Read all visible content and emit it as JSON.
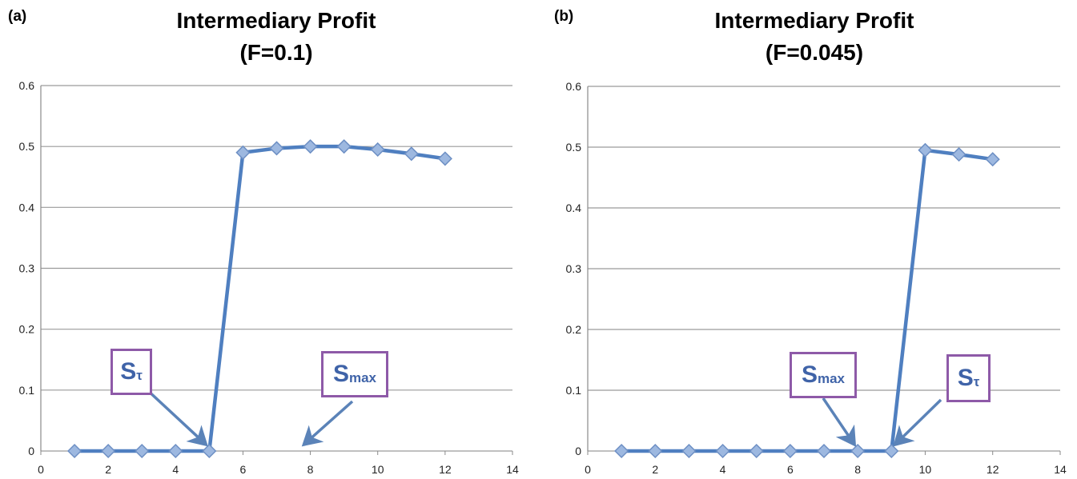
{
  "chart_data": [
    {
      "type": "line",
      "panel_label": "(a)",
      "title": [
        "Intermediary Profit",
        "(F=0.1)"
      ],
      "xlim": [
        0,
        14
      ],
      "ylim": [
        0,
        0.6
      ],
      "x_ticks": [
        0,
        2,
        4,
        6,
        8,
        10,
        12,
        14
      ],
      "y_ticks": [
        0,
        0.1,
        0.2,
        0.3,
        0.4,
        0.5,
        0.6
      ],
      "grid": "horizontal",
      "series": [
        {
          "color": "#4f7fc0",
          "x": [
            1,
            2,
            3,
            4,
            5,
            6,
            7,
            8,
            9,
            10,
            11,
            12
          ],
          "y": [
            0,
            0,
            0,
            0,
            0,
            0.49,
            0.497,
            0.5,
            0.5,
            0.495,
            0.488,
            0.48
          ]
        }
      ],
      "annotations": [
        {
          "main": "S",
          "sub": "τ",
          "arrow_to": {
            "x": 5,
            "y": 0
          }
        },
        {
          "main": "S",
          "sub": "max",
          "arrow_to": {
            "x": 7.9,
            "y": 0
          }
        }
      ]
    },
    {
      "type": "line",
      "panel_label": "(b)",
      "title": [
        "Intermediary Profit",
        "(F=0.045)"
      ],
      "xlim": [
        0,
        14
      ],
      "ylim": [
        0,
        0.6
      ],
      "x_ticks": [
        0,
        2,
        4,
        6,
        8,
        10,
        12,
        14
      ],
      "y_ticks": [
        0,
        0.1,
        0.2,
        0.3,
        0.4,
        0.5,
        0.6
      ],
      "grid": "horizontal",
      "series": [
        {
          "color": "#4f7fc0",
          "x": [
            1,
            2,
            3,
            4,
            5,
            6,
            7,
            8,
            9,
            10,
            11,
            12
          ],
          "y": [
            0,
            0,
            0,
            0,
            0,
            0,
            0,
            0,
            0,
            0.495,
            0.488,
            0.48
          ]
        }
      ],
      "annotations": [
        {
          "main": "S",
          "sub": "max",
          "arrow_to": {
            "x": 8,
            "y": 0
          }
        },
        {
          "main": "S",
          "sub": "τ",
          "arrow_to": {
            "x": 9.2,
            "y": 0
          }
        }
      ]
    }
  ]
}
